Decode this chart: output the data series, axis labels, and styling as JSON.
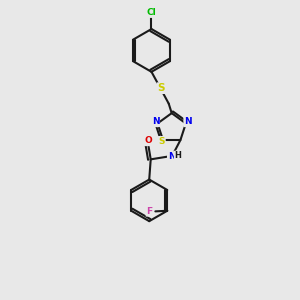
{
  "background_color": "#e8e8e8",
  "bond_color": "#1a1a1a",
  "atom_colors": {
    "Cl": "#00bb00",
    "S": "#cccc00",
    "N": "#0000ee",
    "O": "#dd0000",
    "F": "#cc44aa",
    "H": "#1a1a1a",
    "C": "#1a1a1a"
  },
  "figsize": [
    3.0,
    3.0
  ],
  "dpi": 100
}
